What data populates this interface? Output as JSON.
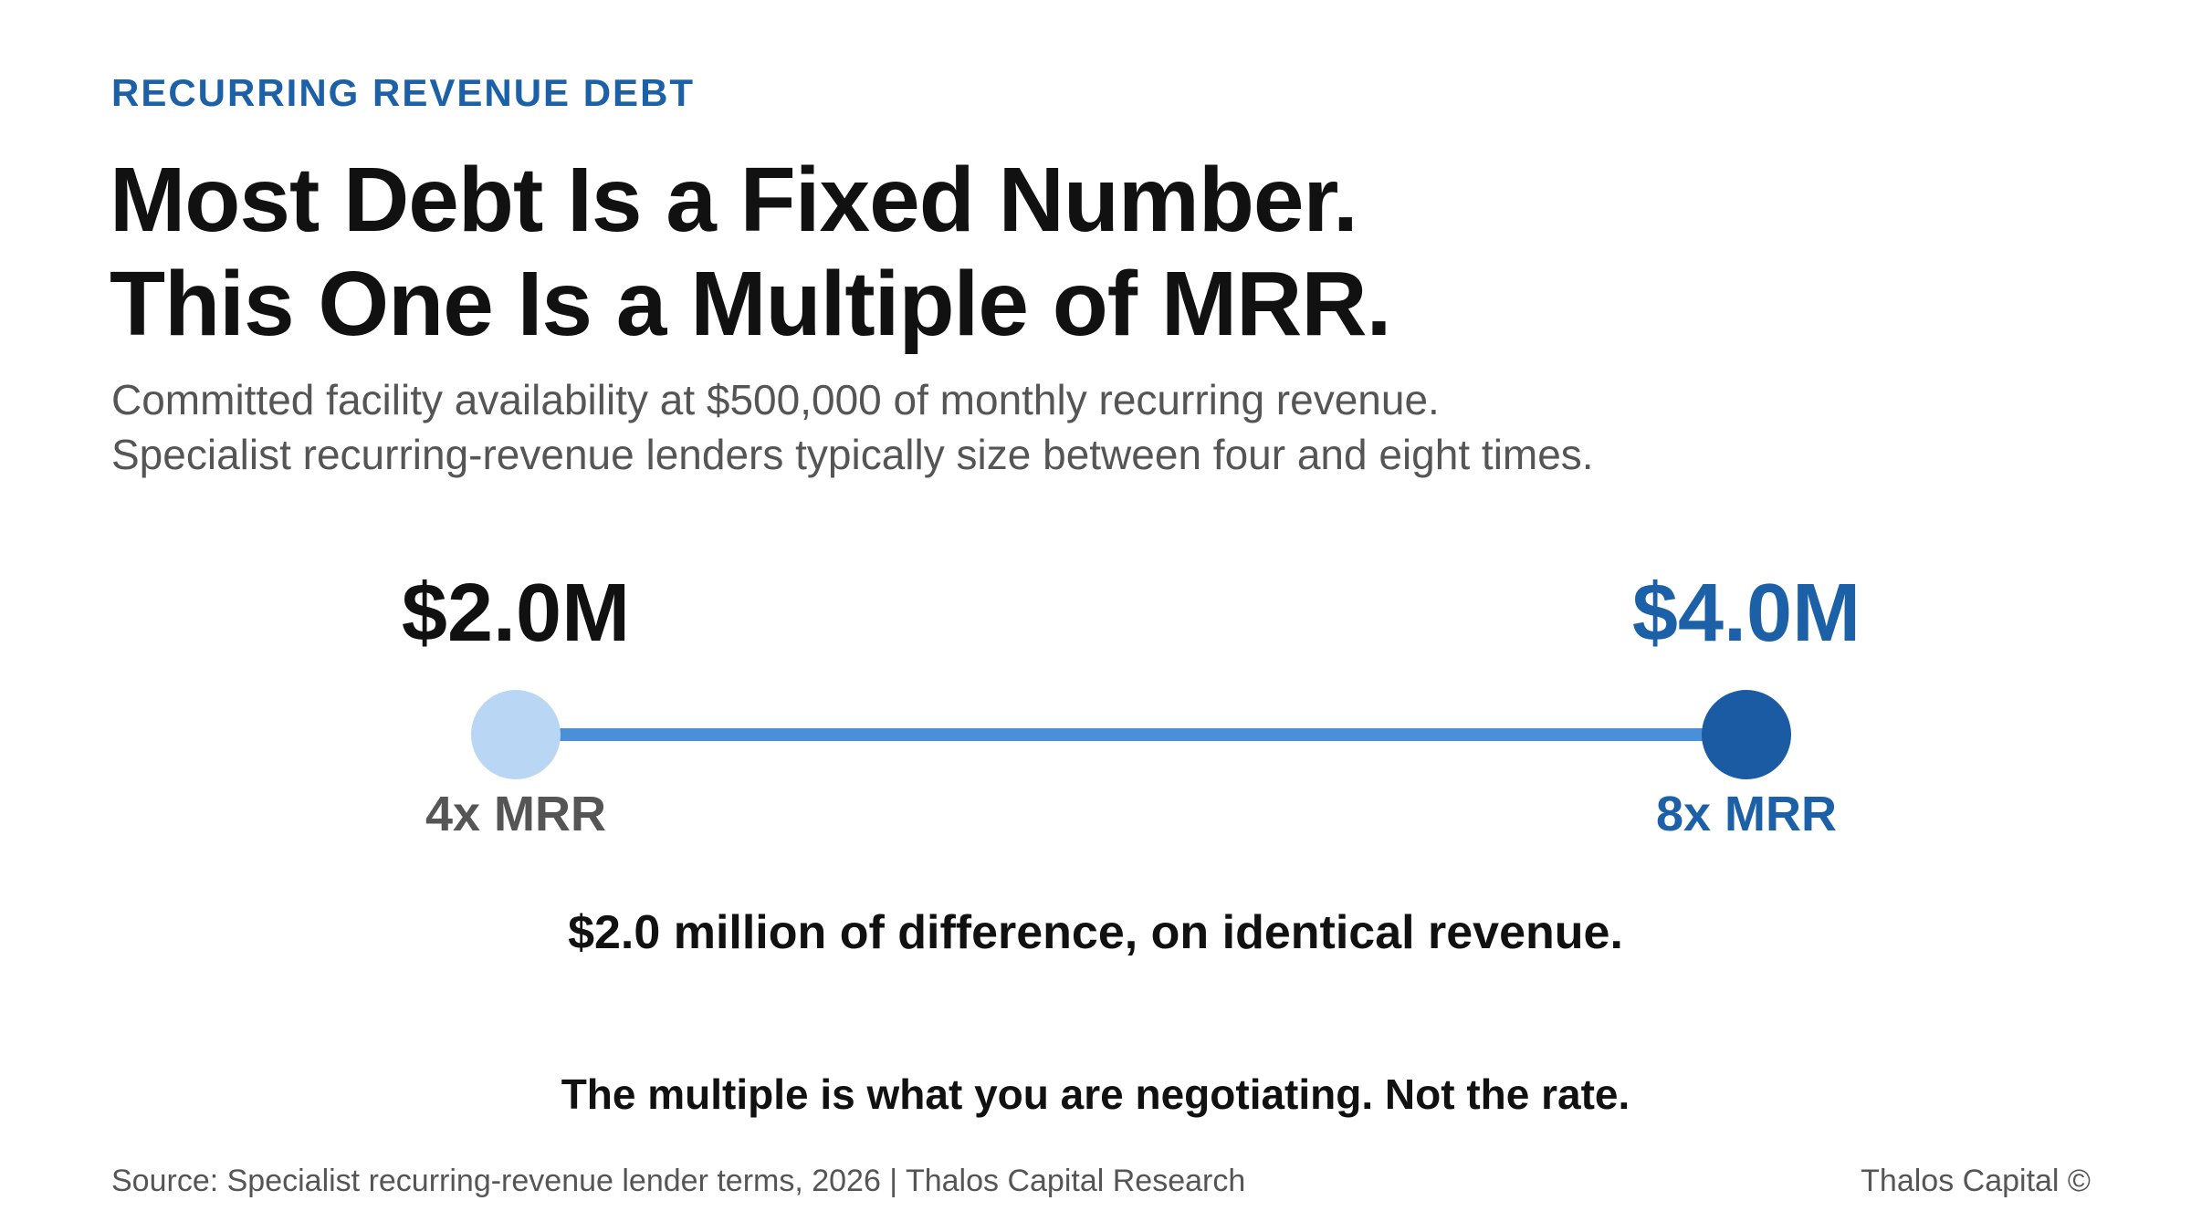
{
  "header": {
    "eyebrow": "RECURRING REVENUE DEBT",
    "title_lines": [
      "Most Debt Is a Fixed Number.",
      "This One Is a Multiple of MRR."
    ],
    "subtitle_lines": [
      "Committed facility availability at $500,000 of monthly recurring revenue.",
      "Specialist recurring-revenue lenders typically size between four and eight times."
    ]
  },
  "range": {
    "low": {
      "value_label": "$2.0M",
      "multiple_label": "4x MRR",
      "value_musd": 2.0,
      "multiple": 4
    },
    "high": {
      "value_label": "$4.0M",
      "multiple_label": "8x MRR",
      "value_musd": 4.0,
      "multiple": 8
    },
    "colors": {
      "low_dot": "#b9d6f5",
      "high_dot": "#1a5ba3",
      "track": "#4a90d9",
      "accent": "#1c60a8"
    }
  },
  "difference_text": "$2.0 million of difference, on identical revenue.",
  "kicker_text": "The multiple is what you are negotiating. Not the rate.",
  "footer": {
    "source": "Source: Specialist recurring-revenue lender terms, 2026 | Thalos Capital Research",
    "brand": "Thalos Capital ©"
  }
}
